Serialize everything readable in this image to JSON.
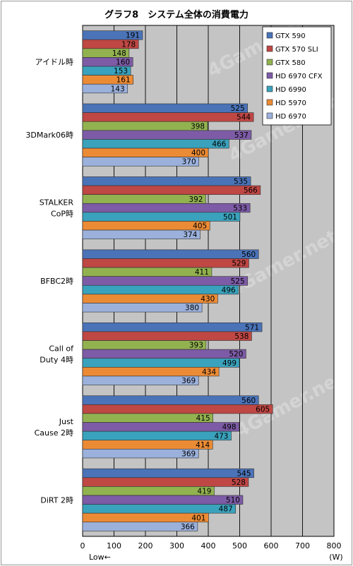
{
  "chart_data": {
    "type": "bar",
    "orientation": "horizontal",
    "title": "グラフ8　システム全体の消費電力",
    "categories": [
      [
        "アイドル時"
      ],
      [
        "3DMark06時"
      ],
      [
        "STALKER",
        "CoP時"
      ],
      [
        "BFBC2時"
      ],
      [
        "Call of",
        "Duty 4時"
      ],
      [
        "Just",
        "Cause 2時"
      ],
      [
        "DiRT 2時"
      ]
    ],
    "series": [
      {
        "name": "GTX 590",
        "color": "#4a73b8",
        "values": [
          191,
          525,
          535,
          560,
          571,
          560,
          545
        ]
      },
      {
        "name": "GTX 570 SLI",
        "color": "#bf4744",
        "values": [
          178,
          544,
          566,
          529,
          538,
          605,
          528
        ]
      },
      {
        "name": "GTX 580",
        "color": "#92b250",
        "values": [
          148,
          398,
          392,
          411,
          393,
          415,
          419
        ]
      },
      {
        "name": "HD 6970 CFX",
        "color": "#7d5ba6",
        "values": [
          160,
          537,
          533,
          525,
          520,
          498,
          510
        ]
      },
      {
        "name": "HD 6990",
        "color": "#3aa2bc",
        "values": [
          153,
          466,
          501,
          496,
          499,
          473,
          487
        ]
      },
      {
        "name": "HD 5970",
        "color": "#ec8b35",
        "values": [
          161,
          400,
          405,
          430,
          434,
          414,
          401
        ]
      },
      {
        "name": "HD 6970",
        "color": "#9bb1dc",
        "values": [
          143,
          370,
          374,
          380,
          369,
          369,
          366
        ]
      }
    ],
    "xlim": [
      0,
      800
    ],
    "xticks": [
      0,
      100,
      200,
      300,
      400,
      500,
      600,
      700,
      800
    ],
    "xlabel_left": "Low←",
    "xunit": "(W)",
    "legend_position": "top-right",
    "grid": true,
    "watermark": "4Gamer.net"
  }
}
